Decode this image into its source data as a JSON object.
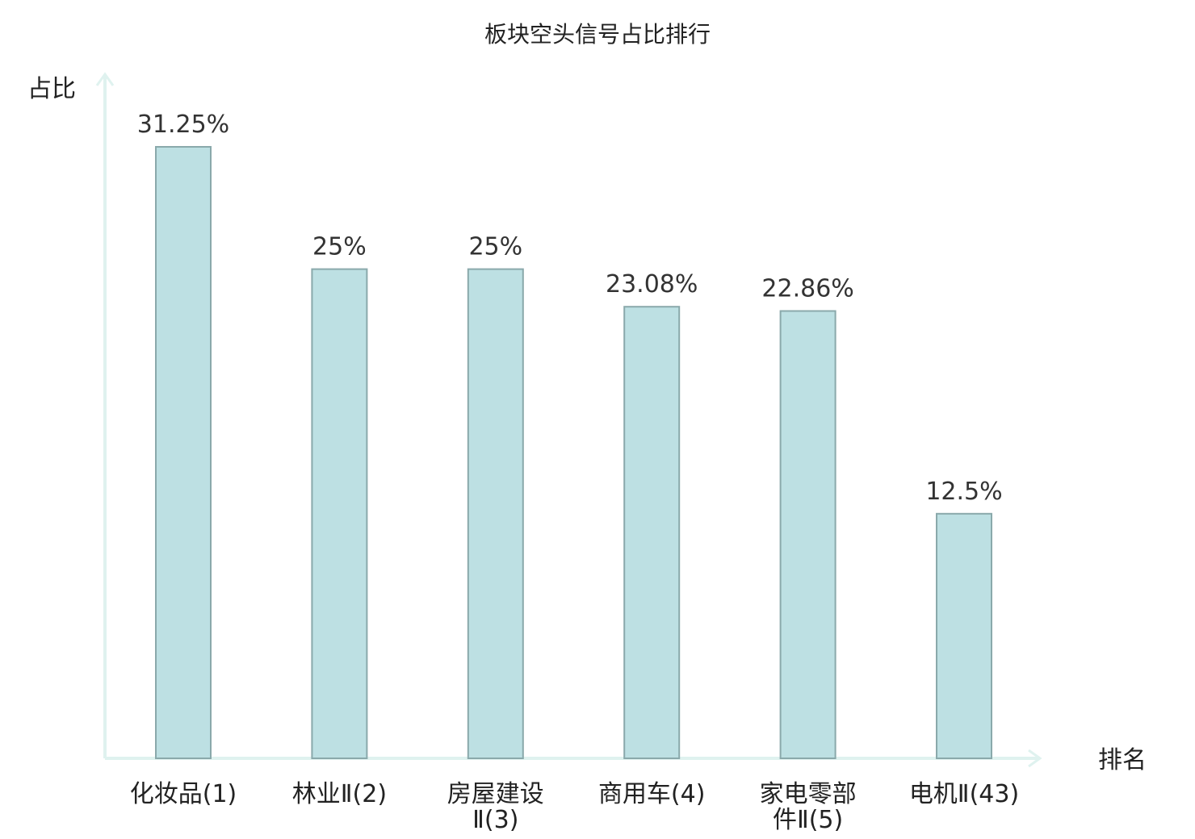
{
  "chart_data": {
    "type": "bar",
    "title": "板块空头信号占比排行",
    "ylabel": "占比",
    "xlabel": "排名",
    "categories": [
      "化妆品(1)",
      "林业Ⅱ(2)",
      "房屋建设Ⅱ(3)",
      "商用车(4)",
      "家电零部件Ⅱ(5)",
      "电机Ⅱ(43)"
    ],
    "category_lines": [
      [
        "化妆品(1)"
      ],
      [
        "林业Ⅱ(2)"
      ],
      [
        "房屋建设",
        "Ⅱ(3)"
      ],
      [
        "商用车(4)"
      ],
      [
        "家电零部",
        "件Ⅱ(5)"
      ],
      [
        "电机Ⅱ(43)"
      ]
    ],
    "values": [
      31.25,
      25,
      25,
      23.08,
      22.86,
      12.5
    ],
    "value_labels": [
      "31.25%",
      "25%",
      "25%",
      "23.08%",
      "22.86%",
      "12.5%"
    ],
    "highlight_index": 5,
    "ylim": [
      0,
      35
    ],
    "grid": false,
    "colors": {
      "bar_fill": "#bde0e3",
      "bar_stroke": "#8aa9ab",
      "axis": "#dff2ef",
      "text": "#222222",
      "value_text": "#333333",
      "highlight_text": "#e8141b"
    }
  }
}
